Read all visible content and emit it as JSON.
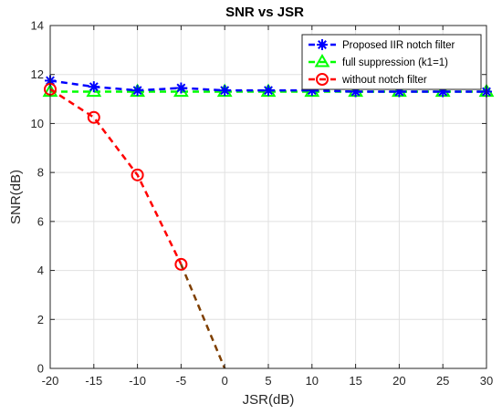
{
  "chart_data": {
    "type": "line",
    "title": "SNR vs JSR",
    "xlabel": "JSR(dB)",
    "ylabel": "SNR(dB)",
    "xlim": [
      -20,
      30
    ],
    "ylim": [
      0,
      14
    ],
    "xticks": [
      "-20",
      "-15",
      "-10",
      "-5",
      "0",
      "5",
      "10",
      "15",
      "20",
      "25",
      "30"
    ],
    "yticks": [
      "0",
      "2",
      "4",
      "6",
      "8",
      "10",
      "12",
      "14"
    ],
    "grid": true,
    "legend_position": "top-right",
    "series": [
      {
        "name": "Proposed IIR notch filter",
        "color": "#0000ff",
        "marker": "asterisk",
        "line_style": "dashed",
        "x": [
          -20,
          -15,
          -10,
          -5,
          0,
          5,
          10,
          15,
          20,
          25,
          30
        ],
        "y": [
          11.75,
          11.5,
          11.35,
          11.45,
          11.35,
          11.35,
          11.35,
          11.3,
          11.3,
          11.3,
          11.3
        ]
      },
      {
        "name": "full suppression (k1=1)",
        "color": "#00ff00",
        "marker": "triangle",
        "line_style": "dashed",
        "x": [
          -20,
          -15,
          -10,
          -5,
          0,
          5,
          10,
          15,
          20,
          25,
          30
        ],
        "y": [
          11.3,
          11.3,
          11.3,
          11.3,
          11.3,
          11.3,
          11.3,
          11.3,
          11.3,
          11.3,
          11.3
        ]
      },
      {
        "name": "without notch filter",
        "color": "#ff0000",
        "marker": "circle",
        "line_style": "dashed",
        "x": [
          -20,
          -15,
          -10,
          -5
        ],
        "y": [
          11.4,
          10.25,
          7.9,
          4.25
        ],
        "extension": {
          "color": "#7f3f00",
          "x": [
            -5,
            0
          ],
          "y": [
            4.25,
            0
          ]
        }
      }
    ]
  }
}
